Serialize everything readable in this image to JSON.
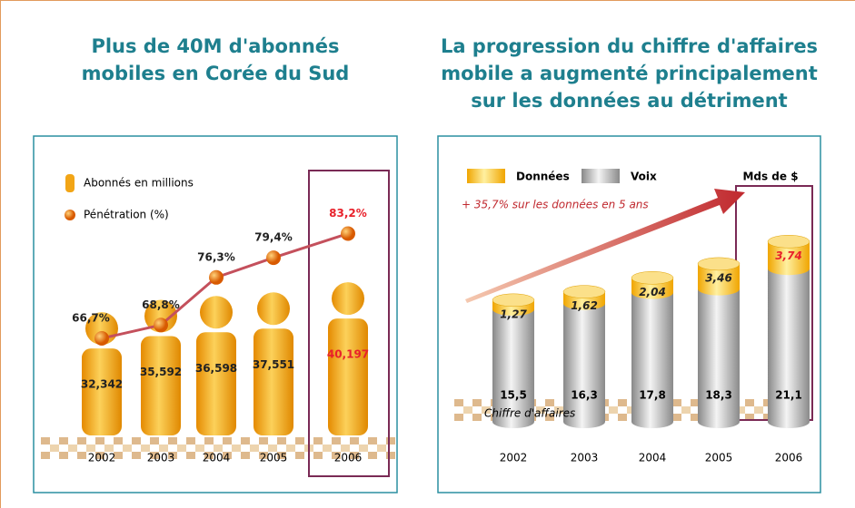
{
  "chart_data": [
    {
      "type": "pictogram",
      "title": "Plus de 40M d'abonnés mobiles en Corée du Sud",
      "categories": [
        "2002",
        "2003",
        "2004",
        "2005",
        "2006"
      ],
      "series": [
        {
          "name": "Abonnés en millions",
          "color": "#f2a516",
          "values": [
            32.342,
            35.592,
            36.598,
            37.551,
            40.197
          ],
          "value_labels": [
            "32,342",
            "35,592",
            "36,598",
            "37,551",
            "40,197"
          ]
        },
        {
          "name": "Pénétration (%)",
          "color": "#c4505c",
          "values": [
            66.7,
            68.8,
            76.3,
            79.4,
            83.2
          ],
          "value_labels": [
            "66,7%",
            "68,8%",
            "76,3%",
            "79,4%",
            "83,2%"
          ]
        }
      ]
    },
    {
      "type": "stacked-cylinder",
      "title": "La progression du chiffre d'affaires mobile a augmenté principalement sur les données au détriment",
      "unit": "Mds de $",
      "annotations": [
        "+ 35,7% sur les données en 5 ans",
        "Chiffre d'affaires"
      ],
      "categories": [
        "2002",
        "2003",
        "2004",
        "2005",
        "2006"
      ],
      "series": [
        {
          "name": "Données",
          "color": "#f7c548",
          "values": [
            1.27,
            1.62,
            2.04,
            3.46,
            3.74
          ],
          "value_labels": [
            "1,27",
            "1,62",
            "2,04",
            "3,46",
            "3,74"
          ]
        },
        {
          "name": "Voix",
          "color": "#b8b8b8",
          "values": [
            15.5,
            16.3,
            17.8,
            18.3,
            21.1
          ],
          "value_labels": [
            "15,5",
            "16,3",
            "17,8",
            "18,3",
            "21,1"
          ]
        }
      ]
    }
  ]
}
